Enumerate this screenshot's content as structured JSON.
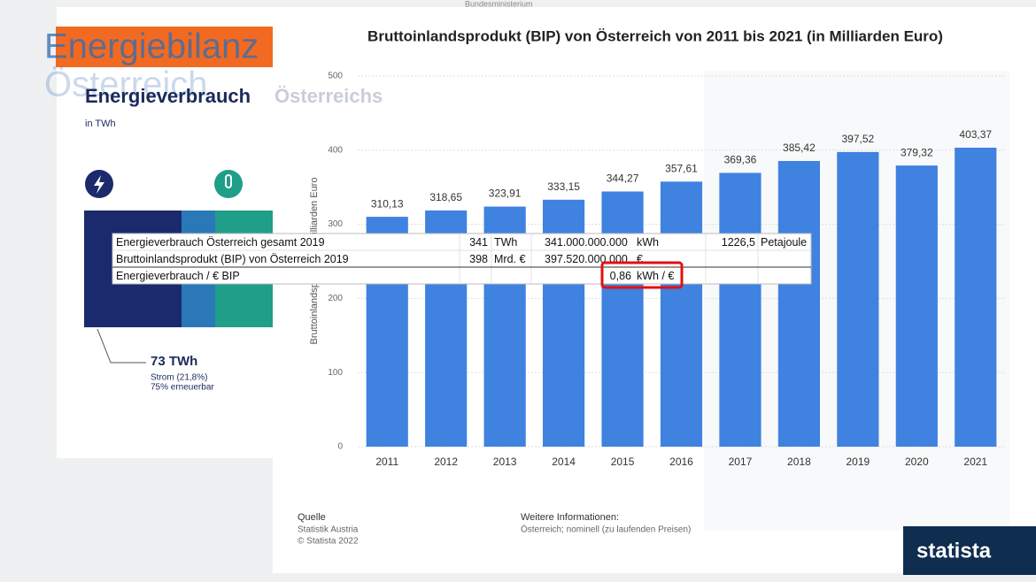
{
  "chart_data": {
    "type": "bar",
    "title": "Bruttoinlandsprodukt (BIP) von Österreich von 2011 bis 2021 (in Milliarden Euro)",
    "y_label": "Bruttoinlandsprodukt in Milliarden Euro",
    "categories": [
      "2011",
      "2012",
      "2013",
      "2014",
      "2015",
      "2016",
      "2017",
      "2018",
      "2019",
      "2020",
      "2021"
    ],
    "values": [
      310.13,
      318.65,
      323.91,
      333.15,
      344.27,
      357.61,
      369.36,
      385.42,
      397.52,
      379.32,
      403.37
    ],
    "value_labels": [
      "310,13",
      "318,65",
      "323,91",
      "333,15",
      "344,27",
      "357,61",
      "369,36",
      "385,42",
      "397,52",
      "379,32",
      "403,37"
    ],
    "color": "#3f82e0",
    "ylim": [
      0,
      500
    ],
    "yticks": [
      0,
      100,
      200,
      300,
      400,
      500
    ],
    "grid": true
  },
  "panel": {
    "title_1": "Energiebilanz",
    "title_2": "Österreich",
    "heading": "Energieverbrauch",
    "heading_tail": "Österreichs",
    "unit": "in TWh",
    "stat": "73 TWh",
    "stat_line_1": "Strom (21,8%)",
    "stat_line_2": "75% erneuerbar"
  },
  "overlay_table": {
    "rows": [
      [
        "Energieverbrauch Österreich gesamt 2019",
        "341",
        "TWh",
        "341.000.000.000",
        "kWh",
        "1226,5",
        "Petajoule"
      ],
      [
        "Bruttoinlandsprodukt (BIP) von Österreich 2019",
        "398",
        "Mrd. €",
        "397.520.000.000",
        "€"
      ],
      [
        "Energieverbrauch / € BIP",
        "0,86",
        "kWh / €"
      ]
    ]
  },
  "source": {
    "heading": "Quelle",
    "lines": [
      "Statistik Austria",
      "© Statista 2022"
    ]
  },
  "info": {
    "heading": "Weitere Informationen:",
    "text": "Österreich; nominell (zu laufenden Preisen)"
  },
  "top_note": "Bundesministerium",
  "logo": "statista"
}
